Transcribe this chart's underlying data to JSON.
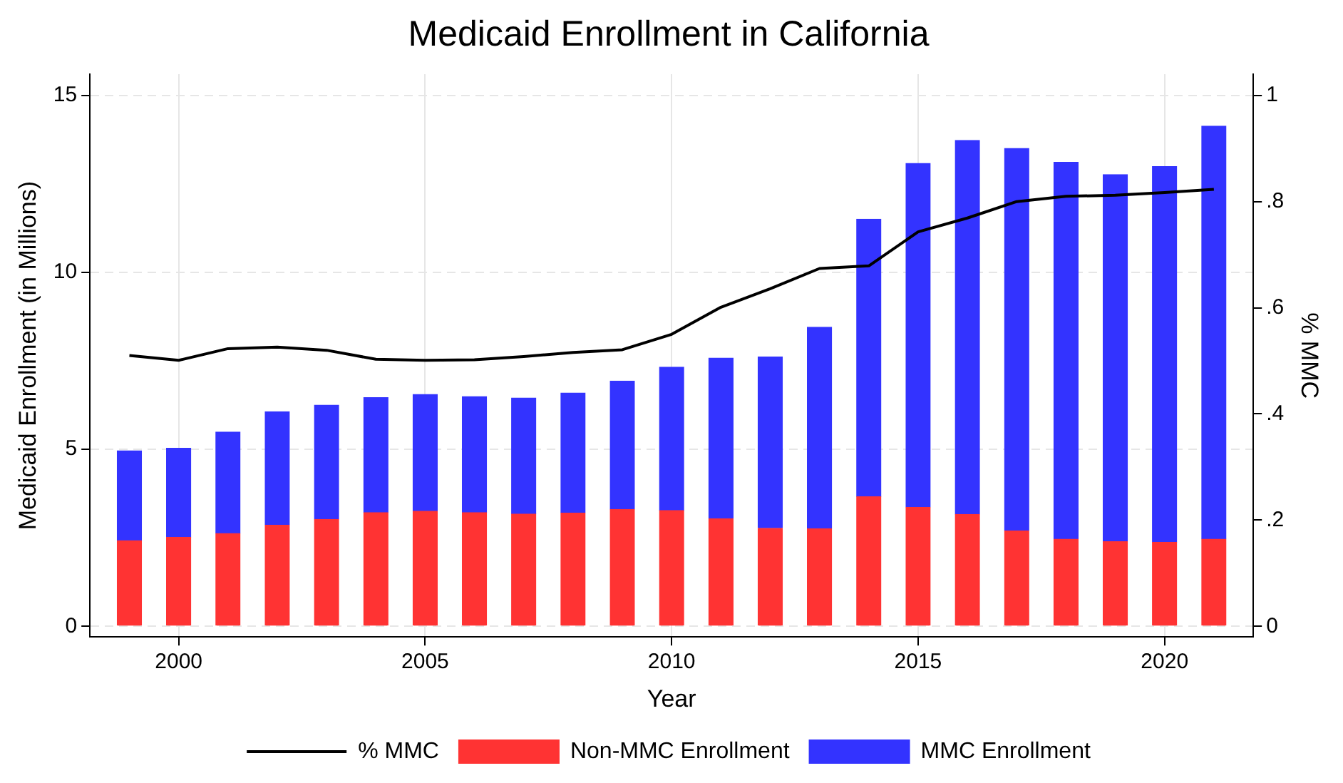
{
  "chart_data": {
    "type": "bar",
    "title": "Medicaid Enrollment in California",
    "xlabel": "Year",
    "ylabel": "Medicaid Enrollment (in Millions)",
    "y2label": "% MMC",
    "x": [
      1999,
      2000,
      2001,
      2002,
      2003,
      2004,
      2005,
      2006,
      2007,
      2008,
      2009,
      2010,
      2011,
      2012,
      2013,
      2014,
      2015,
      2016,
      2017,
      2018,
      2019,
      2020,
      2021
    ],
    "stacked": true,
    "series": [
      {
        "name": "Non-MMC Enrollment",
        "color": "#ff3333",
        "values": [
          2.42,
          2.51,
          2.62,
          2.86,
          3.02,
          3.21,
          3.25,
          3.21,
          3.17,
          3.2,
          3.3,
          3.27,
          3.04,
          2.77,
          2.76,
          3.66,
          3.36,
          3.16,
          2.7,
          2.46,
          2.39,
          2.37,
          2.46
        ]
      },
      {
        "name": "MMC Enrollment",
        "color": "#3333ff",
        "values": [
          2.54,
          2.52,
          2.87,
          3.2,
          3.23,
          3.25,
          3.3,
          3.28,
          3.28,
          3.39,
          3.63,
          4.05,
          4.54,
          4.84,
          5.69,
          7.84,
          9.72,
          10.57,
          10.8,
          10.65,
          10.37,
          10.62,
          11.67
        ]
      },
      {
        "name": "% MMC",
        "type": "line",
        "axis": "y2",
        "color": "#000000",
        "values": [
          0.51,
          0.501,
          0.523,
          0.526,
          0.52,
          0.503,
          0.501,
          0.502,
          0.508,
          0.516,
          0.521,
          0.55,
          0.601,
          0.636,
          0.674,
          0.679,
          0.743,
          0.769,
          0.8,
          0.81,
          0.812,
          0.817,
          0.823
        ]
      }
    ],
    "xlim": [
      1998.2,
      2021.8
    ],
    "xticks": [
      2000,
      2005,
      2010,
      2015,
      2020
    ],
    "ylim": [
      -0.3,
      15.6
    ],
    "yticks": [
      0,
      5,
      10,
      15
    ],
    "y2lim": [
      -0.02,
      1.04
    ],
    "y2ticks": [
      0,
      {
        "value": 0.2,
        "label": ".2"
      },
      {
        "value": 0.4,
        "label": ".4"
      },
      {
        "value": 0.6,
        "label": ".6"
      },
      {
        "value": 0.8,
        "label": ".8"
      },
      1
    ],
    "grid": true,
    "legend": "bottom",
    "marker": "none",
    "line_style": "solid"
  }
}
